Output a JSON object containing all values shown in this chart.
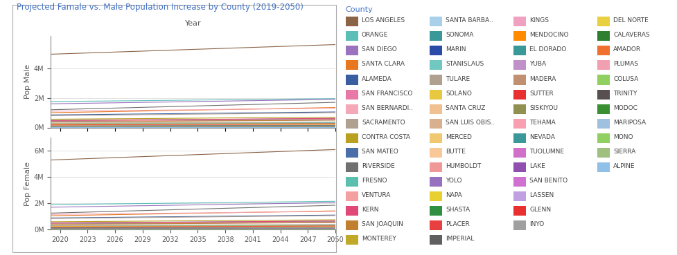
{
  "title": "Projected Famale vs. Male Population Increase by County (2019-2050)",
  "xlabel": "Year",
  "ylabel_top": "Pop Male",
  "ylabel_bottom": "Pop Female",
  "title_color": "#4472C4",
  "xlabel_color": "#595959",
  "years": [
    2019,
    2020,
    2021,
    2022,
    2023,
    2024,
    2025,
    2026,
    2027,
    2028,
    2029,
    2030,
    2031,
    2032,
    2033,
    2034,
    2035,
    2036,
    2037,
    2038,
    2039,
    2040,
    2041,
    2042,
    2043,
    2044,
    2045,
    2046,
    2047,
    2048,
    2049,
    2050
  ],
  "counties": [
    "LOS ANGELES",
    "ORANGE",
    "SAN DIEGO",
    "SANTA CLARA",
    "ALAMEDA",
    "SAN FRANCISCO",
    "SAN BERNARDI..",
    "SACRAMENTO",
    "CONTRA COSTA",
    "SAN MATEO",
    "RIVERSIDE",
    "FRESNO",
    "VENTURA",
    "KERN",
    "SAN JOAQUIN",
    "MONTEREY",
    "SANTA BARBA..",
    "SONOMA",
    "MARIN",
    "STANISLAUS",
    "TULARE",
    "SOLANO",
    "SANTA CRUZ",
    "SAN LUIS OBIS..",
    "MERCED",
    "BUTTE",
    "HUMBOLDT",
    "YOLO",
    "NAPA",
    "SHASTA",
    "PLACER",
    "IMPERIAL",
    "KINGS",
    "MENDOCINO",
    "EL DORADO",
    "YUBA",
    "MADERA",
    "SUTTER",
    "SISKIYOU",
    "TEHAMA",
    "NEVADA",
    "TUOLUMNE",
    "LAKE",
    "SAN BENITO",
    "LASSEN",
    "GLENN",
    "INYO",
    "DEL NORTE",
    "CALAVERAS",
    "AMADOR",
    "PLUMAS",
    "COLUSA",
    "TRINITY",
    "MODOC",
    "MARIPOSA",
    "MONO",
    "SIERRA",
    "ALPINE"
  ],
  "colors": [
    "#8B6347",
    "#5BBFB8",
    "#9B72BE",
    "#E87820",
    "#3A5FA0",
    "#E878A8",
    "#F4A8B8",
    "#B0A090",
    "#B8A020",
    "#4A6FA8",
    "#707070",
    "#5BBFB0",
    "#F2A0A0",
    "#E04878",
    "#C08030",
    "#C0A828",
    "#A8D0E8",
    "#3A9898",
    "#2B4BA8",
    "#70C8C0",
    "#B0A090",
    "#E8C840",
    "#F0C090",
    "#D8B090",
    "#F0C870",
    "#F8C898",
    "#F09898",
    "#9870C0",
    "#E8D030",
    "#2E9040",
    "#E84040",
    "#606060",
    "#F0A0C0",
    "#FF8C00",
    "#3A9898",
    "#C090C8",
    "#C09070",
    "#E83030",
    "#909050",
    "#F8A0B0",
    "#3A9898",
    "#D070C8",
    "#9050B0",
    "#D070D0",
    "#C0A0E0",
    "#E83030",
    "#A0A0A0",
    "#E8D040",
    "#2E8030",
    "#F07030",
    "#F0A0B0",
    "#90D060",
    "#585050",
    "#3A9030",
    "#A0C0E0",
    "#90D060",
    "#A0C080",
    "#90C0E8"
  ],
  "male_2019": [
    4950000,
    1750000,
    1600000,
    1000000,
    850000,
    450000,
    1100000,
    800000,
    560000,
    420000,
    1200000,
    480000,
    440000,
    470000,
    370000,
    220000,
    220000,
    250000,
    130000,
    275000,
    290000,
    230000,
    130000,
    145000,
    145000,
    110000,
    65000,
    100000,
    70000,
    90000,
    175000,
    95000,
    75000,
    45000,
    90000,
    38000,
    77000,
    50000,
    23000,
    32000,
    50000,
    28000,
    32000,
    30000,
    15000,
    15000,
    18000,
    14000,
    23000,
    19000,
    9000,
    11000,
    7000,
    4500,
    9000,
    7000,
    1500,
    600
  ],
  "male_2050": [
    5600000,
    1950000,
    1900000,
    1350000,
    1050000,
    560000,
    1300000,
    1000000,
    700000,
    510000,
    1700000,
    600000,
    520000,
    620000,
    500000,
    270000,
    260000,
    270000,
    140000,
    330000,
    370000,
    260000,
    155000,
    160000,
    190000,
    120000,
    72000,
    120000,
    78000,
    100000,
    250000,
    115000,
    90000,
    50000,
    110000,
    50000,
    95000,
    63000,
    25000,
    38000,
    58000,
    30000,
    35000,
    42000,
    16000,
    16000,
    19000,
    14500,
    27000,
    21000,
    9500,
    12500,
    7200,
    4600,
    9500,
    8000,
    1600,
    620
  ],
  "female_2019": [
    5300000,
    1900000,
    1700000,
    1050000,
    880000,
    490000,
    1150000,
    840000,
    590000,
    440000,
    1250000,
    510000,
    465000,
    490000,
    385000,
    230000,
    235000,
    270000,
    135000,
    285000,
    295000,
    240000,
    140000,
    155000,
    155000,
    118000,
    68000,
    105000,
    73000,
    93000,
    180000,
    98000,
    78000,
    48000,
    94000,
    40000,
    80000,
    52000,
    25000,
    34000,
    53000,
    30000,
    34000,
    31000,
    16000,
    16000,
    19000,
    15000,
    24000,
    20000,
    9500,
    11500,
    7500,
    4800,
    9500,
    7500,
    1600,
    650
  ],
  "female_2050": [
    6100000,
    2150000,
    2050000,
    1420000,
    1100000,
    610000,
    1380000,
    1060000,
    740000,
    540000,
    1850000,
    640000,
    550000,
    650000,
    530000,
    285000,
    275000,
    290000,
    145000,
    345000,
    380000,
    275000,
    165000,
    172000,
    200000,
    128000,
    76000,
    128000,
    82000,
    106000,
    265000,
    120000,
    95000,
    53000,
    116000,
    53000,
    100000,
    67000,
    27000,
    40000,
    62000,
    32000,
    37000,
    44000,
    17000,
    17000,
    20000,
    15500,
    28000,
    22000,
    10000,
    13000,
    7500,
    4700,
    10000,
    8500,
    1700,
    640
  ],
  "legend_cols": [
    [
      0,
      1,
      2,
      3,
      4,
      5,
      6,
      7,
      8,
      9,
      10,
      11,
      12,
      13,
      14,
      15
    ],
    [
      16,
      17,
      18,
      19,
      20,
      21,
      22,
      23,
      24,
      25,
      26,
      27,
      28,
      29,
      30,
      31
    ],
    [
      32,
      33,
      34,
      35,
      36,
      37,
      38,
      39,
      40,
      41,
      42,
      43,
      44,
      45,
      46
    ],
    [
      47,
      48,
      49,
      50,
      51,
      52,
      53,
      54,
      55,
      56,
      57
    ]
  ]
}
